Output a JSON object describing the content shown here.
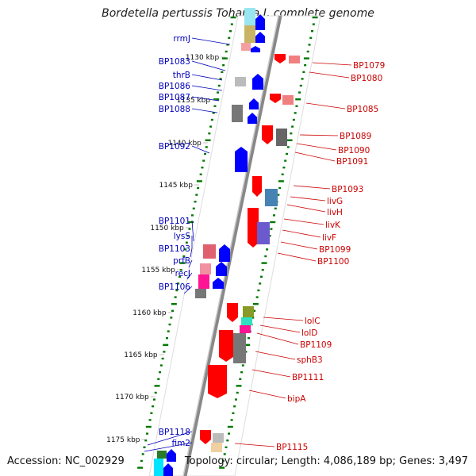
{
  "header": {
    "title": "Bordetella pertussis Tohama I, complete genome"
  },
  "footer": {
    "accession": "Accession: NC_002929",
    "summary": "Topology: circular; Length: 4,086,189 bp; Genes: 3,497"
  },
  "colors": {
    "forward_label": "#0000bb",
    "reverse_label": "#cc0000",
    "forward_arrow": "#0000ff",
    "reverse_arrow": "#ff0000",
    "tick": "#007700",
    "backbone": "#888888"
  },
  "scale_ticks": [
    "1130 kbp",
    "1135 kbp",
    "1140 kbp",
    "1145 kbp",
    "1150 kbp",
    "1155 kbp",
    "1160 kbp",
    "1165 kbp",
    "1170 kbp",
    "1175 kbp"
  ],
  "forward_labels": [
    "rrmJ",
    "BP1083",
    "thrB",
    "BP1086",
    "BP1087",
    "BP1088",
    "BP1092",
    "BP1101",
    "lysS",
    "BP1103",
    "prfB",
    "recJ",
    "BP1106",
    "BP1118",
    "fim2"
  ],
  "reverse_labels": [
    "BP1079",
    "BP1080",
    "BP1085",
    "BP1089",
    "BP1090",
    "BP1091",
    "BP1093",
    "livG",
    "livH",
    "livK",
    "livF",
    "BP1099",
    "BP1100",
    "lolC",
    "lolD",
    "BP1109",
    "sphB3",
    "BP1111",
    "bipA",
    "BP1115"
  ]
}
